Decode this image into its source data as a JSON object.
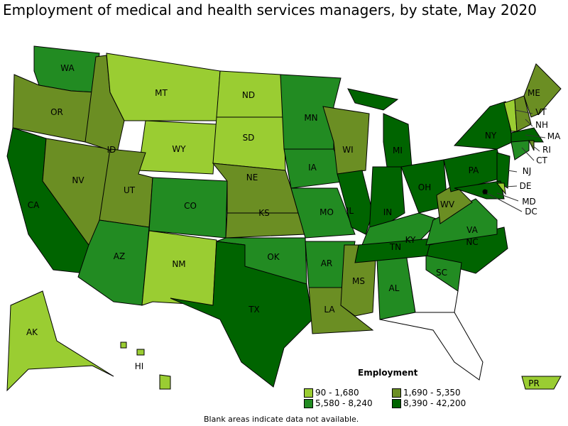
{
  "title": "Employment of medical and health services managers, by state, May 2020",
  "legend": {
    "title": "Employment",
    "classes": [
      {
        "label": "90 - 1,680",
        "color": "#9acd32"
      },
      {
        "label": "1,690 - 5,350",
        "color": "#6b8e23"
      },
      {
        "label": "5,580 - 8,240",
        "color": "#228b22"
      },
      {
        "label": "8,390 - 42,200",
        "color": "#006400"
      }
    ]
  },
  "note": "Blank areas indicate data not available.",
  "states": {
    "WA": 2,
    "OR": 1,
    "CA": 3,
    "NV": 1,
    "ID": 1,
    "MT": 0,
    "WY": 0,
    "UT": 1,
    "CO": 2,
    "AZ": 2,
    "NM": 0,
    "ND": 0,
    "SD": 0,
    "NE": 1,
    "KS": 1,
    "OK": 2,
    "TX": 3,
    "MN": 2,
    "IA": 2,
    "MO": 2,
    "AR": 2,
    "LA": 1,
    "MS": 1,
    "AL": 2,
    "WI": 1,
    "IL": 3,
    "IN": 3,
    "MI": 3,
    "OH": 3,
    "KY": 2,
    "TN": 3,
    "NC": 3,
    "SC": 2,
    "GA": null,
    "FL": null,
    "VA": 2,
    "WV": 1,
    "PA": 3,
    "NY": 3,
    "NJ": 3,
    "MD": 3,
    "DE": 0,
    "DC": 3,
    "VT": 0,
    "NH": 1,
    "ME": 1,
    "MA": 3,
    "CT": 2,
    "RI": 1,
    "AK": 0,
    "HI": 0,
    "PR": 0
  }
}
